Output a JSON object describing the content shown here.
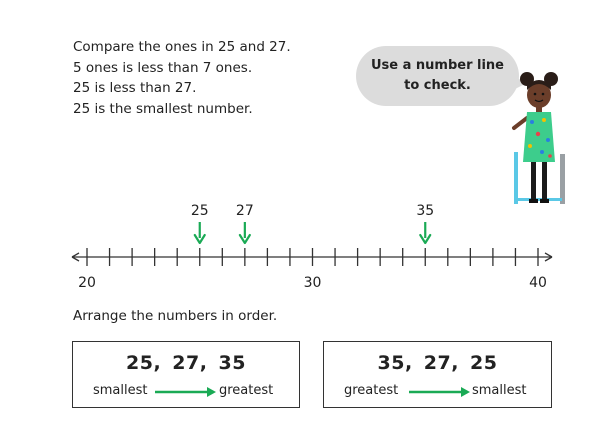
{
  "explanation": [
    "Compare the ones in 25 and 27.",
    "5 ones is less than 7 ones.",
    "25 is less than 27.",
    "25 is the smallest number."
  ],
  "speech": {
    "line1": "Use a number line",
    "line2": "to check."
  },
  "number_line": {
    "start": 20,
    "end": 40,
    "step": 1,
    "labels": [
      "20",
      "30",
      "40"
    ],
    "markers": [
      "25",
      "27",
      "35"
    ],
    "marker_color": "#1aaa55"
  },
  "instruction": "Arrange the numbers in order.",
  "order_boxes": [
    {
      "numbers": "25,  27,  35",
      "from": "smallest",
      "to": "greatest"
    },
    {
      "numbers": "35,  27,  25",
      "from": "greatest",
      "to": "smallest"
    }
  ],
  "colors": {
    "arrow": "#1aaa55",
    "bubble": "#dcdcdc"
  },
  "character_icon": "girl-in-wheelchair-illustration"
}
